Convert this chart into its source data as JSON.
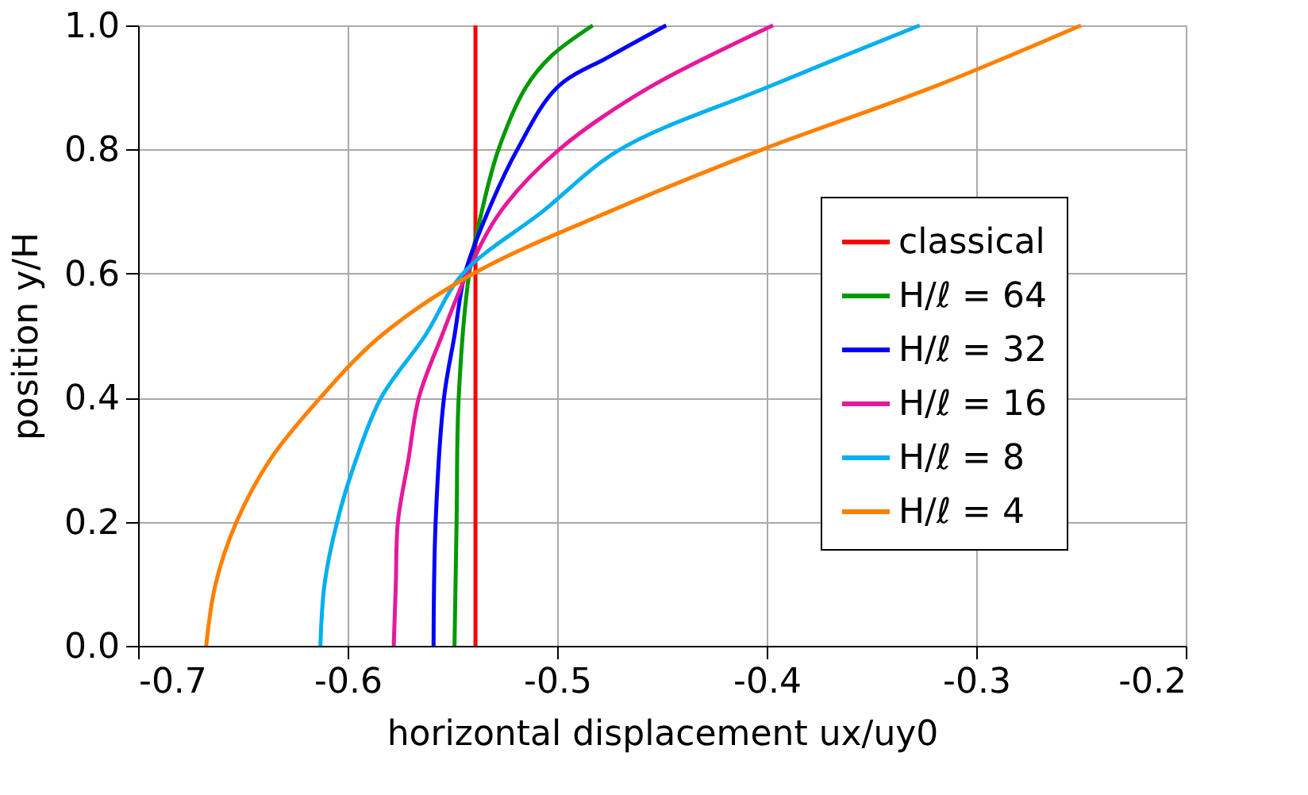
{
  "chart_data": {
    "type": "line",
    "xlabel": "horizontal displacement ux/uy0",
    "ylabel": "position y/H",
    "xlim": [
      -0.7,
      -0.2
    ],
    "ylim": [
      0,
      1
    ],
    "xticks": [
      -0.7,
      -0.6,
      -0.5,
      -0.4,
      -0.3,
      -0.2
    ],
    "yticks": [
      {
        "value": 0,
        "label": "0.0"
      },
      0.2,
      0.4,
      0.6,
      0.8,
      {
        "value": 1,
        "label": "1.0"
      }
    ],
    "grid": true,
    "legend": "right",
    "marker": "none",
    "line_style": "solid",
    "series": [
      {
        "name": "classical",
        "color": "#ff0000",
        "x": [
          -0.539,
          -0.539
        ],
        "values": [
          0,
          1
        ]
      },
      {
        "name": "H/ℓ = 64",
        "color": "#009900",
        "x": [
          -0.549,
          -0.548,
          -0.547,
          -0.542,
          -0.536,
          -0.528,
          -0.515,
          -0.503,
          -0.483
        ],
        "values": [
          0,
          0.2,
          0.4,
          0.6,
          0.7,
          0.8,
          0.9,
          0.95,
          1
        ]
      },
      {
        "name": "H/ℓ = 32",
        "color": "#0000ff",
        "x": [
          -0.559,
          -0.558,
          -0.554,
          -0.549,
          -0.544,
          -0.533,
          -0.519,
          -0.5,
          -0.475,
          -0.448
        ],
        "values": [
          0,
          0.2,
          0.4,
          0.5,
          0.6,
          0.7,
          0.8,
          0.9,
          0.95,
          1
        ]
      },
      {
        "name": "H/ℓ = 16",
        "color": "#e6199b",
        "x": [
          -0.578,
          -0.577,
          -0.576,
          -0.571,
          -0.566,
          -0.555,
          -0.543,
          -0.527,
          -0.499,
          -0.456,
          -0.397
        ],
        "values": [
          0,
          0.1,
          0.2,
          0.3,
          0.4,
          0.5,
          0.6,
          0.7,
          0.8,
          0.9,
          1
        ]
      },
      {
        "name": "H/ℓ = 8",
        "color": "#00b0f0",
        "x": [
          -0.613,
          -0.611,
          -0.605,
          -0.596,
          -0.584,
          -0.563,
          -0.545,
          -0.507,
          -0.47,
          -0.4,
          -0.327
        ],
        "values": [
          0,
          0.1,
          0.2,
          0.3,
          0.4,
          0.5,
          0.6,
          0.7,
          0.8,
          0.9,
          1
        ]
      },
      {
        "name": "H/ℓ = 4",
        "color": "#ff8000",
        "x": [
          -0.6675,
          -0.663,
          -0.653,
          -0.637,
          -0.613,
          -0.584,
          -0.54,
          -0.475,
          -0.402,
          -0.321,
          -0.25
        ],
        "values": [
          0,
          0.1,
          0.2,
          0.3,
          0.4,
          0.5,
          0.6,
          0.7,
          0.8,
          0.9,
          1
        ]
      }
    ]
  }
}
